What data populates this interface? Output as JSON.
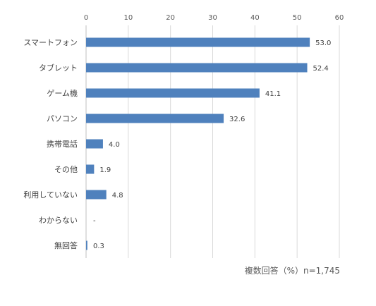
{
  "chart_data": {
    "type": "bar",
    "orientation": "horizontal",
    "categories": [
      "スマートフォン",
      "タブレット",
      "ゲーム機",
      "パソコン",
      "携帯電話",
      "その他",
      "利用していない",
      "わからない",
      "無回答"
    ],
    "values": [
      53.0,
      52.4,
      41.1,
      32.6,
      4.0,
      1.9,
      4.8,
      null,
      0.3
    ],
    "data_labels": [
      "53.0",
      "52.4",
      "41.1",
      "32.6",
      "4.0",
      "1.9",
      "4.8",
      "-",
      "0.3"
    ],
    "x_ticks": [
      "0",
      "10",
      "20",
      "30",
      "40",
      "50",
      "60"
    ],
    "xlim": [
      0,
      60
    ],
    "x_axis_position": "top",
    "grid": true,
    "bar_color": "#4f81bd",
    "note": "複数回答（%）n=1,745"
  }
}
